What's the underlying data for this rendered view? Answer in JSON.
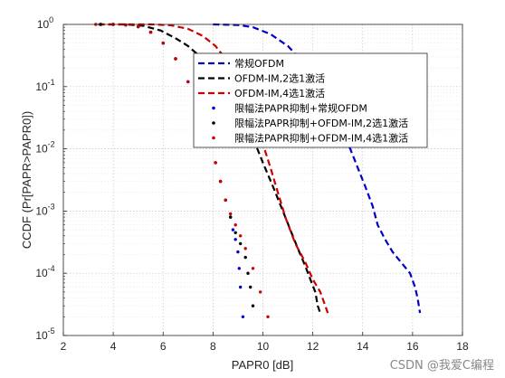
{
  "chart_data": {
    "type": "line",
    "xlabel": "PAPR0 [dB]",
    "ylabel": "CCDF (Pr[PAPR>PAPR0])",
    "xlim": [
      2,
      18
    ],
    "ylim": [
      1e-05,
      1
    ],
    "yscale": "log",
    "xticks": [
      "2",
      "4",
      "6",
      "8",
      "10",
      "12",
      "14",
      "16",
      "18"
    ],
    "yticks": [
      {
        "value": 1,
        "base": "10",
        "exp": "0"
      },
      {
        "value": 0.1,
        "base": "10",
        "exp": "-1"
      },
      {
        "value": 0.01,
        "base": "10",
        "exp": "-2"
      },
      {
        "value": 0.001,
        "base": "10",
        "exp": "-3"
      },
      {
        "value": 0.0001,
        "base": "10",
        "exp": "-4"
      },
      {
        "value": 1e-05,
        "base": "10",
        "exp": "-5"
      }
    ],
    "grid": true,
    "legend_position": "top-right",
    "series": [
      {
        "name": "常规OFDM",
        "color": "#0000cc",
        "style": "dashed",
        "x": [
          8.0,
          9.0,
          9.6,
          10.3,
          11.0,
          11.6,
          12.1,
          12.6,
          13.1,
          13.5,
          13.8,
          14.1,
          14.4,
          14.6,
          14.9,
          15.2,
          15.6,
          15.9,
          16.1,
          16.2,
          16.3
        ],
        "y": [
          1,
          0.98,
          0.9,
          0.7,
          0.45,
          0.25,
          0.12,
          0.055,
          0.022,
          0.01,
          0.005,
          0.0025,
          0.0012,
          0.0006,
          0.00035,
          0.00022,
          0.00014,
          0.0001,
          6e-05,
          4e-05,
          2.3e-05
        ]
      },
      {
        "name": "OFDM-IM,2选1激活",
        "color": "#000000",
        "style": "dashed",
        "x": [
          3.4,
          4.5,
          5.2,
          5.9,
          6.5,
          7.0,
          7.5,
          7.9,
          8.3,
          8.7,
          9.1,
          9.6,
          10.0,
          10.4,
          10.8,
          11.1,
          11.4,
          11.7,
          11.9,
          12.1,
          12.2,
          12.3
        ],
        "y": [
          1,
          1,
          0.95,
          0.8,
          0.6,
          0.45,
          0.3,
          0.2,
          0.12,
          0.07,
          0.035,
          0.015,
          0.006,
          0.0025,
          0.001,
          0.0005,
          0.00025,
          0.00013,
          8e-05,
          5e-05,
          3e-05,
          2.3e-05
        ]
      },
      {
        "name": "OFDM-IM,4选1激活",
        "color": "#cc0000",
        "style": "dashed",
        "x": [
          3.4,
          4.5,
          5.5,
          6.3,
          7.0,
          7.6,
          8.1,
          8.6,
          9.0,
          9.4,
          9.7,
          10.0,
          10.3,
          10.6,
          10.9,
          11.3,
          11.7,
          12.0,
          12.3,
          12.5,
          12.6
        ],
        "y": [
          1,
          1,
          1,
          0.97,
          0.85,
          0.65,
          0.45,
          0.25,
          0.13,
          0.06,
          0.028,
          0.012,
          0.005,
          0.002,
          0.0008,
          0.0003,
          0.00015,
          8e-05,
          5e-05,
          3e-05,
          2.3e-05
        ]
      },
      {
        "name": "限幅法PAPR抑制+常规OFDM",
        "color": "#0000cc",
        "style": "dotted",
        "x": [
          3.5,
          4.0,
          4.5,
          5.0,
          5.5,
          6.0,
          6.5,
          7.0,
          7.3,
          7.6,
          7.9,
          8.1,
          8.3,
          8.5,
          8.7,
          8.8,
          8.9,
          9.0,
          9.05,
          9.1,
          9.2
        ],
        "y": [
          1,
          1,
          0.98,
          0.92,
          0.75,
          0.5,
          0.28,
          0.12,
          0.06,
          0.03,
          0.012,
          0.006,
          0.003,
          0.0015,
          0.0008,
          0.0005,
          0.00035,
          0.00022,
          0.00012,
          6e-05,
          2e-05
        ]
      },
      {
        "name": "限幅法PAPR抑制+OFDM-IM,2选1激活",
        "color": "#000000",
        "style": "dotted",
        "x": [
          3.5,
          4.0,
          4.5,
          5.0,
          5.5,
          6.0,
          6.5,
          7.0,
          7.3,
          7.6,
          7.9,
          8.1,
          8.3,
          8.5,
          8.7,
          8.9,
          9.1,
          9.3,
          9.4,
          9.5,
          9.6
        ],
        "y": [
          1,
          1,
          0.98,
          0.92,
          0.75,
          0.5,
          0.28,
          0.12,
          0.06,
          0.03,
          0.012,
          0.006,
          0.003,
          0.0015,
          0.0008,
          0.00045,
          0.0003,
          0.00018,
          0.0001,
          6e-05,
          3e-05
        ]
      },
      {
        "name": "限幅法PAPR抑制+OFDM-IM,4选1激活",
        "color": "#cc0000",
        "style": "dotted",
        "x": [
          3.3,
          4.0,
          4.5,
          5.0,
          5.5,
          6.0,
          6.5,
          7.0,
          7.3,
          7.6,
          7.9,
          8.1,
          8.3,
          8.5,
          8.7,
          8.9,
          9.1,
          9.3,
          9.6,
          9.9,
          10.2
        ],
        "y": [
          1,
          1,
          0.98,
          0.92,
          0.75,
          0.5,
          0.28,
          0.12,
          0.06,
          0.03,
          0.012,
          0.006,
          0.003,
          0.0015,
          0.0009,
          0.0006,
          0.0004,
          0.00025,
          0.00012,
          5e-05,
          2e-05
        ]
      }
    ]
  },
  "watermark": "CSDN @我爱C编程"
}
